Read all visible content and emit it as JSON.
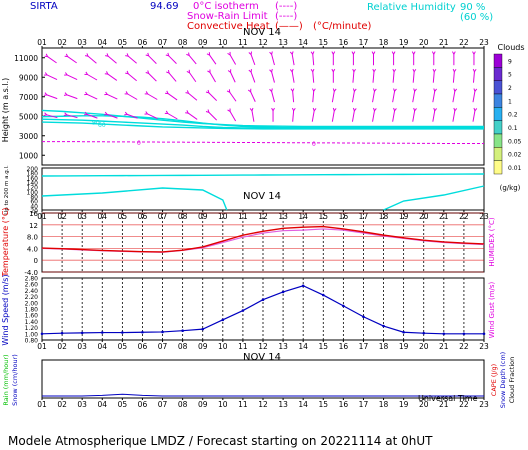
{
  "header": {
    "station": "SIRTA",
    "elevation": "94.69",
    "zero_isotherm_label": "0°C isotherm",
    "snow_rain_label": "Snow-Rain Limit",
    "convective_label": "Convective Heat",
    "convective_unit": "(°C/minute)",
    "legend_dash": "(----)",
    "legend_solid": "(——)",
    "rh_label": "Relative Humidity",
    "rh_90": "90 %",
    "rh_60": "(60 %)"
  },
  "footer": {
    "title": "Modele Atmospherique LMDZ / Forecast starting on 20221114 at 0hUT",
    "universal_time": "Universal Time"
  },
  "date_label": "NOV 14",
  "hours": [
    "01",
    "02",
    "03",
    "04",
    "05",
    "06",
    "07",
    "08",
    "09",
    "10",
    "11",
    "12",
    "13",
    "14",
    "15",
    "16",
    "17",
    "18",
    "19",
    "20",
    "21",
    "22",
    "23"
  ],
  "colors": {
    "wind": "#e000e0",
    "humidity": "#00dcdc",
    "temperature": "#e00000",
    "humidex": "#e060e0",
    "wind_speed": "#0000c0",
    "isotherm": "#e000e0"
  },
  "cloud_scale": {
    "title": "Clouds",
    "unit": "(g/kg)",
    "levels": [
      "9",
      "5",
      "2",
      "1",
      "0.2",
      "0.1",
      "0.05",
      "0.02",
      "0.01"
    ],
    "colors": [
      "#9b00d6",
      "#6a2ad0",
      "#4a52d4",
      "#3c84e0",
      "#28b0f0",
      "#44d0c8",
      "#88e488",
      "#d4f07c",
      "#fffc88"
    ]
  },
  "chart_data": [
    {
      "type": "line",
      "name": "vertical-profile",
      "ylabel": "Height (m a.s.l.)",
      "ylabel_lower": "Up to 200 m a.g.l.",
      "yticks_upper": [
        "11000",
        "9000",
        "7000",
        "5000",
        "3000",
        "1000"
      ],
      "yticks_lower": [
        "200",
        "180",
        "160",
        "140",
        "120",
        "100",
        "80",
        "60",
        "40",
        "20"
      ],
      "humidity_band_labels": [
        "90",
        "60"
      ],
      "zero_isotherm_label": "0",
      "zero_isotherm_m": [
        2400,
        2400,
        2390,
        2380,
        2370,
        2360,
        2350,
        2340,
        2330,
        2320,
        2310,
        2300,
        2290,
        2280,
        2270,
        2260,
        2250,
        2240,
        2230,
        2220,
        2210,
        2200,
        2200
      ]
    },
    {
      "type": "line",
      "name": "temperature",
      "x": [
        "01",
        "02",
        "03",
        "04",
        "05",
        "06",
        "07",
        "08",
        "09",
        "10",
        "11",
        "12",
        "13",
        "14",
        "15",
        "16",
        "17",
        "18",
        "19",
        "20",
        "21",
        "22",
        "23"
      ],
      "ylabel": "Temperature (°C)",
      "ylabel_right": "HUMIDEX (°C)",
      "yticks": [
        "16",
        "12",
        "8.0",
        "4.0",
        "0",
        "-4.0"
      ],
      "ylim": [
        -4,
        16
      ],
      "series": [
        {
          "name": "Temperature",
          "values": [
            4.1,
            3.9,
            3.6,
            3.3,
            3.1,
            2.9,
            2.8,
            3.4,
            4.5,
            6.5,
            8.5,
            9.8,
            10.8,
            11.2,
            11.4,
            10.6,
            9.6,
            8.5,
            7.6,
            6.8,
            6.2,
            5.8,
            5.5
          ]
        },
        {
          "name": "Humidex",
          "values": [
            4.0,
            3.8,
            3.5,
            3.2,
            3.0,
            2.8,
            2.7,
            3.3,
            4.2,
            6.0,
            7.8,
            9.2,
            10.0,
            10.2,
            10.6,
            10.2,
            9.2,
            8.2,
            7.4,
            6.6,
            6.0,
            5.6,
            5.3
          ]
        }
      ]
    },
    {
      "type": "line",
      "name": "wind-speed",
      "x": [
        "01",
        "02",
        "03",
        "04",
        "05",
        "06",
        "07",
        "08",
        "09",
        "10",
        "11",
        "12",
        "13",
        "14",
        "15",
        "16",
        "17",
        "18",
        "19",
        "20",
        "21",
        "22",
        "23"
      ],
      "ylabel": "Wind Speed (m/s)",
      "ylabel_right": "Wind Gust (m/s)",
      "yticks": [
        "2.80",
        "2.60",
        "2.40",
        "2.20",
        "2.00",
        "1.80",
        "1.60",
        "1.40",
        "1.20",
        "1.00",
        "0.80"
      ],
      "ylim": [
        0.8,
        2.8
      ],
      "values": [
        1.0,
        1.02,
        1.03,
        1.04,
        1.04,
        1.05,
        1.06,
        1.1,
        1.15,
        1.45,
        1.75,
        2.1,
        2.35,
        2.55,
        2.25,
        1.9,
        1.55,
        1.25,
        1.05,
        1.02,
        1.0,
        1.0,
        1.0
      ]
    },
    {
      "type": "line",
      "name": "precipitation",
      "x": [
        "01",
        "02",
        "03",
        "04",
        "05",
        "06",
        "07",
        "08",
        "09",
        "10",
        "11",
        "12",
        "13",
        "14",
        "15",
        "16",
        "17",
        "18",
        "19",
        "20",
        "21",
        "22",
        "23"
      ],
      "ylabel": "Rain (mm/hour)",
      "ylabel2": "Snow (cm/hour)",
      "ylabel_right": "CAPE (J/g)",
      "ylabel_right2": "Snow Depth (cm)",
      "ylabel_right3": "Cloud Fraction",
      "values": [
        0,
        0,
        0,
        0.01,
        0.03,
        0.01,
        0,
        0,
        0,
        0,
        0,
        0,
        0,
        0,
        0,
        0,
        0,
        0,
        0,
        0,
        0,
        0,
        0
      ]
    }
  ]
}
